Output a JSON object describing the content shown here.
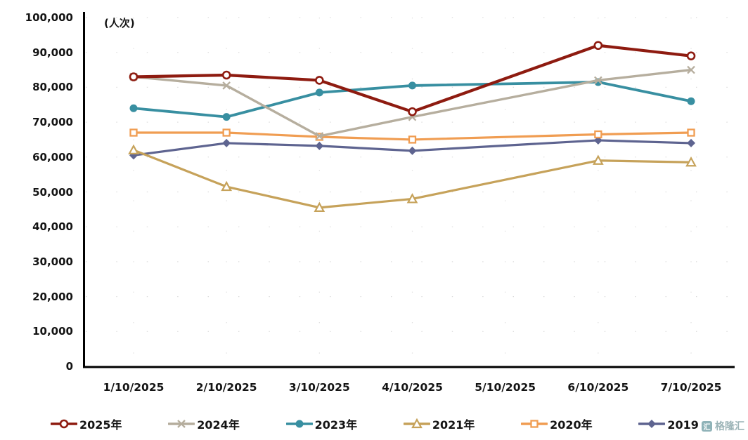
{
  "chart_data": {
    "type": "line",
    "title": "",
    "unit_label": "(人次)",
    "categories": [
      "1/10/2025",
      "2/10/2025",
      "3/10/2025",
      "4/10/2025",
      "5/10/2025",
      "6/10/2025",
      "7/10/2025"
    ],
    "ylim": [
      0,
      100000
    ],
    "ytick_interval": 10000,
    "grid": "faint-dotted",
    "legend_position": "bottom",
    "series": [
      {
        "name": "2025年",
        "color": "#8e1b10",
        "marker": "open-circle",
        "line_width": 4.2,
        "values": [
          83000,
          83500,
          82000,
          73000,
          null,
          92000,
          89000
        ]
      },
      {
        "name": "2024年",
        "color": "#b6ae9e",
        "marker": "x",
        "line_width": 3.4,
        "values": [
          83000,
          80500,
          66000,
          71500,
          null,
          82000,
          85000
        ]
      },
      {
        "name": "2023年",
        "color": "#388fa1",
        "marker": "circle",
        "line_width": 3.8,
        "values": [
          74000,
          71500,
          78500,
          80500,
          null,
          81500,
          76000
        ]
      },
      {
        "name": "2021年",
        "color": "#c6a25a",
        "marker": "open-triangle",
        "line_width": 3.2,
        "values": [
          62000,
          51500,
          45500,
          48000,
          null,
          59000,
          58500
        ]
      },
      {
        "name": "2020年",
        "color": "#f09d52",
        "marker": "open-square",
        "line_width": 3.2,
        "values": [
          67000,
          67000,
          65800,
          65000,
          null,
          66500,
          67000
        ]
      },
      {
        "name": "2019年",
        "color": "#5e6490",
        "marker": "diamond",
        "line_width": 3.2,
        "values": [
          60500,
          64000,
          63200,
          61800,
          null,
          64800,
          64000
        ]
      }
    ],
    "watermark": "格隆汇",
    "watermark_logo_char": "汇"
  }
}
